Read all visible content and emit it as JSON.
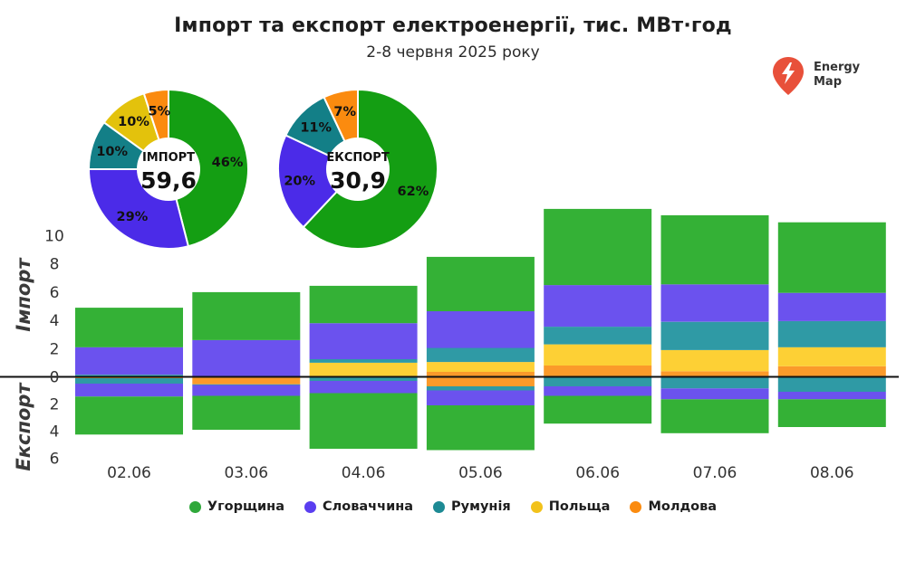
{
  "title": "Імпорт та експорт електроенергії, тис. МВт·год",
  "subtitle": "2-8 червня 2025 року",
  "logo": {
    "line1": "Energy",
    "line2": "Map",
    "color": "#e8503a"
  },
  "chart_data": [
    {
      "type": "pie",
      "center_label": "ІМПОРТ",
      "center_value": "59,6",
      "slices": [
        {
          "name": "Угорщина",
          "value": 46,
          "label": "46%"
        },
        {
          "name": "Словаччина",
          "value": 29,
          "label": "29%"
        },
        {
          "name": "Румунія",
          "value": 10,
          "label": "10%"
        },
        {
          "name": "Польща",
          "value": 10,
          "label": "10%"
        },
        {
          "name": "Молдова",
          "value": 5,
          "label": "5%"
        }
      ]
    },
    {
      "type": "pie",
      "center_label": "ЕКСПОРТ",
      "center_value": "30,9",
      "slices": [
        {
          "name": "Угорщина",
          "value": 62,
          "label": "62%"
        },
        {
          "name": "Словаччина",
          "value": 20,
          "label": "20%"
        },
        {
          "name": "Румунія",
          "value": 11,
          "label": "11%"
        },
        {
          "name": "Польща",
          "value": 0,
          "label": ""
        },
        {
          "name": "Молдова",
          "value": 7,
          "label": "7%"
        }
      ]
    },
    {
      "type": "bar",
      "stacked": true,
      "categories": [
        "02.06",
        "03.06",
        "04.06",
        "05.06",
        "06.06",
        "07.06",
        "08.06"
      ],
      "ylabel_import": "Імпорт",
      "ylabel_export": "Експорт",
      "import_ticks": [
        0,
        2,
        4,
        6,
        8,
        10
      ],
      "export_ticks": [
        2,
        4,
        6
      ],
      "import_series": [
        {
          "name": "Молдова",
          "values": [
            0,
            0,
            0.05,
            0.35,
            0.8,
            0.4,
            0.75
          ]
        },
        {
          "name": "Польща",
          "values": [
            0,
            0,
            0.95,
            0.7,
            1.5,
            1.5,
            1.35
          ]
        },
        {
          "name": "Румунія",
          "values": [
            0.15,
            0,
            0.25,
            1.0,
            1.25,
            2.0,
            1.85
          ]
        },
        {
          "name": "Словаччина",
          "values": [
            1.95,
            2.6,
            2.55,
            2.6,
            2.95,
            2.65,
            2.0
          ]
        },
        {
          "name": "Угорщина",
          "values": [
            2.8,
            3.4,
            2.65,
            3.85,
            5.4,
            4.9,
            5.0
          ]
        }
      ],
      "export_series": [
        {
          "name": "Молдова",
          "values": [
            0.1,
            0.55,
            0,
            0.7,
            0.05,
            0.05,
            0
          ]
        },
        {
          "name": "Польща",
          "values": [
            0,
            0,
            0,
            0,
            0,
            0,
            0
          ]
        },
        {
          "name": "Румунія",
          "values": [
            0.4,
            0.05,
            0.3,
            0.3,
            0.65,
            0.8,
            1.1
          ]
        },
        {
          "name": "Словаччина",
          "values": [
            0.95,
            0.8,
            0.9,
            1.1,
            0.7,
            0.8,
            0.55
          ]
        },
        {
          "name": "Угорщина",
          "values": [
            2.8,
            2.5,
            4.1,
            3.3,
            2.05,
            2.5,
            2.05
          ]
        }
      ]
    }
  ],
  "legend": [
    {
      "label": "Угорщина",
      "color": "#2fa83b"
    },
    {
      "label": "Словаччина",
      "color": "#5a3ef0"
    },
    {
      "label": "Румунія",
      "color": "#1d8a94"
    },
    {
      "label": "Польща",
      "color": "#f2c21b"
    },
    {
      "label": "Молдова",
      "color": "#fb8b0f"
    }
  ],
  "bar_colors": {
    "Угорщина": "#34b136",
    "Словаччина": "#6b52ee",
    "Румунія": "#2f9aa5",
    "Польща": "#fdd035",
    "Молдова": "#fb9a2a"
  },
  "pie_colors": {
    "Угорщина": "#149e13",
    "Словаччина": "#4b2be8",
    "Румунія": "#137f87",
    "Польща": "#e3c20c",
    "Молдова": "#fb8b0f"
  }
}
